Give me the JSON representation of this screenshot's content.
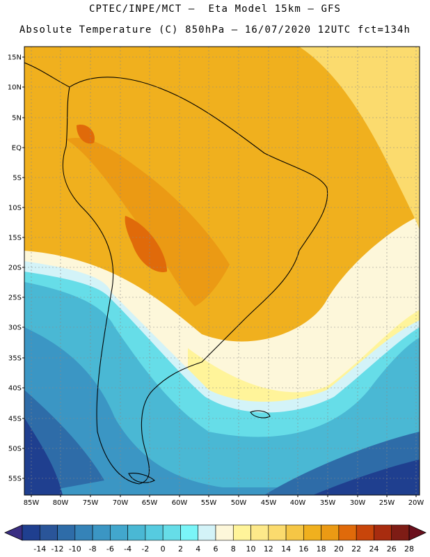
{
  "title_line1": "CPTEC/INPE/MCT –  Eta Model 15km – GFS",
  "title_line2": "Absolute Temperature (C) 850hPa – 16/07/2020 12UTC fct=134h",
  "lat_labels": [
    "15N",
    "10N",
    "5N",
    "EQ",
    "5S",
    "10S",
    "15S",
    "20S",
    "25S",
    "30S",
    "35S",
    "40S",
    "45S",
    "50S",
    "55S"
  ],
  "lon_labels": [
    "85W",
    "80W",
    "75W",
    "70W",
    "65W",
    "60W",
    "55W",
    "50W",
    "45W",
    "40W",
    "35W",
    "30W",
    "25W",
    "20W"
  ],
  "colorbar": {
    "values": [
      "-14",
      "-12",
      "-10",
      "-8",
      "-6",
      "-4",
      "-2",
      "0",
      "2",
      "4",
      "6",
      "8",
      "10",
      "12",
      "14",
      "16",
      "18",
      "20",
      "22",
      "24",
      "26",
      "28"
    ],
    "colors": [
      "#1f3f8f",
      "#2a5599",
      "#2e6ca8",
      "#3583b8",
      "#3b96c4",
      "#42a7cd",
      "#4ab8d4",
      "#56cbe0",
      "#66dde8",
      "#7af5f8",
      "#d3f3f8",
      "#fdf7da",
      "#fff49a",
      "#fde98a",
      "#fbdb6e",
      "#f5c645",
      "#f0b01e",
      "#eb9a14",
      "#e06a0a",
      "#c8450a",
      "#a82c0f",
      "#7e1c15"
    ],
    "below_color": "#3a2e82",
    "above_color": "#6a0f1c"
  },
  "field_colors": {
    "very_cold": "#1f3f8f",
    "cold": "#2e6ca8",
    "cool": "#3b96c4",
    "mild": "#4ab8d4",
    "cyan": "#66dde8",
    "pale": "#d3f3f8",
    "cream": "#fdf7da",
    "yellow": "#fff49a",
    "warm": "#fbdb6e",
    "orange": "#f0b01e",
    "deep_orange": "#eb9a14",
    "hot": "#e06a0a"
  }
}
